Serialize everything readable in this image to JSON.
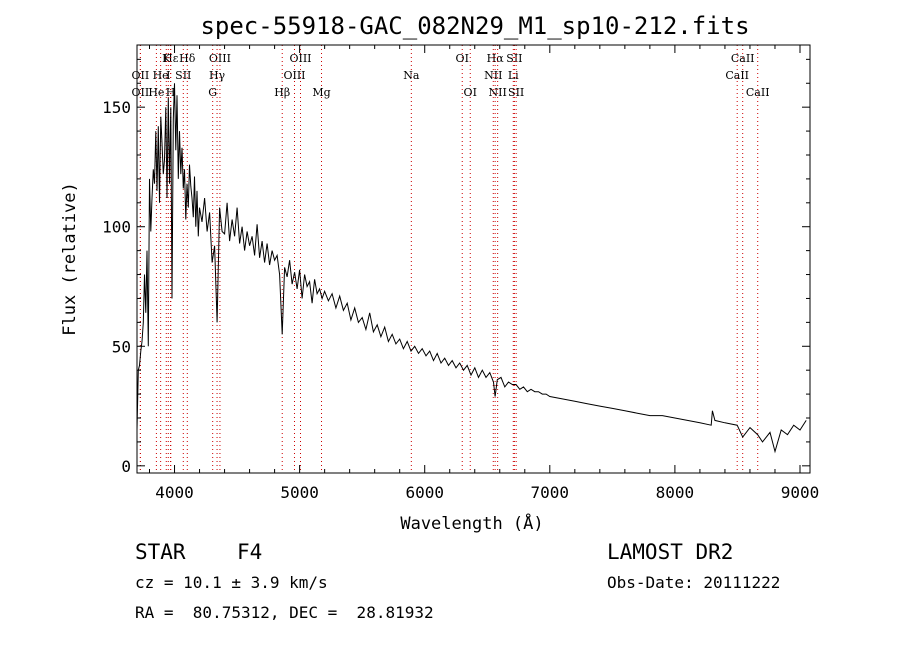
{
  "chart_data": {
    "type": "line",
    "title": "spec-55918-GAC_082N29_M1_sp10-212.fits",
    "xlabel": "Wavelength (Å)",
    "ylabel": "Flux (relative)",
    "xlim": [
      3700,
      9080
    ],
    "ylim": [
      -3,
      176
    ],
    "xticks": [
      4000,
      5000,
      6000,
      7000,
      8000,
      9000
    ],
    "yticks": [
      0,
      50,
      100,
      150
    ],
    "grid": false,
    "line_color": "#000000",
    "marker_color": "#cc0000",
    "series": [
      {
        "x": [
          3700,
          3710,
          3720,
          3730,
          3740,
          3750,
          3760,
          3770,
          3780,
          3790,
          3800,
          3810,
          3820,
          3830,
          3840,
          3850,
          3860,
          3870,
          3880,
          3890,
          3900,
          3910,
          3920,
          3930,
          3940,
          3950,
          3960,
          3970,
          3980,
          3990,
          4000,
          4010,
          4020,
          4030,
          4040,
          4050,
          4060,
          4070,
          4080,
          4090,
          4100,
          4110,
          4120,
          4130,
          4140,
          4150,
          4160,
          4170,
          4180,
          4190,
          4200,
          4220,
          4240,
          4260,
          4280,
          4300,
          4320,
          4340,
          4360,
          4380,
          4400,
          4420,
          4440,
          4460,
          4480,
          4500,
          4520,
          4540,
          4560,
          4580,
          4600,
          4620,
          4640,
          4660,
          4680,
          4700,
          4720,
          4740,
          4760,
          4780,
          4800,
          4820,
          4840,
          4861,
          4880,
          4900,
          4920,
          4940,
          4960,
          4980,
          5000,
          5020,
          5040,
          5060,
          5080,
          5100,
          5120,
          5140,
          5160,
          5180,
          5200,
          5230,
          5260,
          5290,
          5320,
          5350,
          5380,
          5410,
          5440,
          5470,
          5500,
          5530,
          5560,
          5590,
          5620,
          5650,
          5680,
          5710,
          5740,
          5770,
          5800,
          5830,
          5860,
          5890,
          5920,
          5950,
          5980,
          6010,
          6040,
          6070,
          6100,
          6130,
          6160,
          6190,
          6220,
          6250,
          6280,
          6310,
          6340,
          6370,
          6400,
          6430,
          6460,
          6490,
          6520,
          6550,
          6563,
          6580,
          6610,
          6640,
          6670,
          6700,
          6730,
          6760,
          6790,
          6820,
          6850,
          6880,
          6910,
          6940,
          6970,
          7000,
          7100,
          7200,
          7300,
          7400,
          7500,
          7600,
          7700,
          7800,
          7900,
          8000,
          8100,
          8200,
          8290,
          8300,
          8320,
          8400,
          8498,
          8542,
          8600,
          8662,
          8700,
          8760,
          8800,
          8850,
          8900,
          8950,
          9000,
          9050
        ],
        "y": [
          15,
          40,
          42,
          48,
          52,
          60,
          80,
          64,
          90,
          50,
          120,
          98,
          112,
          124,
          118,
          140,
          115,
          142,
          110,
          146,
          135,
          122,
          128,
          150,
          112,
          154,
          118,
          150,
          70,
          145,
          160,
          132,
          155,
          120,
          140,
          122,
          133,
          116,
          124,
          103,
          118,
          108,
          126,
          117,
          112,
          104,
          121,
          100,
          115,
          96,
          108,
          102,
          112,
          98,
          106,
          85,
          92,
          60,
          108,
          98,
          97,
          110,
          94,
          103,
          96,
          108,
          93,
          100,
          90,
          98,
          92,
          96,
          88,
          101,
          87,
          94,
          85,
          93,
          84,
          90,
          86,
          88,
          80,
          55,
          83,
          79,
          86,
          76,
          81,
          74,
          82,
          70,
          80,
          75,
          77,
          68,
          78,
          72,
          74,
          70,
          73,
          69,
          72,
          66,
          71,
          65,
          68,
          61,
          66,
          60,
          62,
          57,
          64,
          56,
          59,
          54,
          58,
          52,
          55,
          51,
          53,
          49,
          52,
          48,
          50,
          47,
          49,
          46,
          48,
          44,
          47,
          43,
          45,
          42,
          44,
          41,
          43,
          40,
          42,
          38,
          41,
          37,
          40,
          37,
          39,
          35,
          29,
          36,
          37,
          33,
          35,
          34,
          34,
          32,
          33,
          31,
          32,
          31,
          31,
          30,
          30,
          29,
          28,
          27,
          26,
          25,
          24,
          23,
          22,
          21,
          21,
          20,
          19,
          18,
          17,
          23,
          19,
          18,
          17,
          12,
          16,
          13,
          10,
          14,
          6,
          15,
          13,
          17,
          15,
          19
        ]
      }
    ],
    "lines": [
      {
        "text": "Hε",
        "wl": 3970,
        "row": 0
      },
      {
        "text": "K",
        "wl": 3934,
        "row": 0
      },
      {
        "text": "Hδ",
        "wl": 4102,
        "row": 0
      },
      {
        "text": "OIII",
        "wl": 4363,
        "row": 0
      },
      {
        "text": "OIII",
        "wl": 5007,
        "row": 0
      },
      {
        "text": "OI",
        "wl": 6300,
        "row": 0
      },
      {
        "text": "Hα",
        "wl": 6563,
        "row": 0
      },
      {
        "text": "SII",
        "wl": 6717,
        "row": 0
      },
      {
        "text": "CaII",
        "wl": 8542,
        "row": 0
      },
      {
        "text": "OII",
        "wl": 3727,
        "row": 1
      },
      {
        "text": "He",
        "wl": 3889,
        "row": 1
      },
      {
        "text": "I",
        "wl": 3950,
        "row": 1
      },
      {
        "text": "SII",
        "wl": 4070,
        "row": 1
      },
      {
        "text": "Hγ",
        "wl": 4340,
        "row": 1
      },
      {
        "text": "OIII",
        "wl": 4959,
        "row": 1
      },
      {
        "text": "Na",
        "wl": 5893,
        "row": 1
      },
      {
        "text": "NII",
        "wl": 6548,
        "row": 1
      },
      {
        "text": "Li",
        "wl": 6708,
        "row": 1
      },
      {
        "text": "CaII",
        "wl": 8498,
        "row": 1
      },
      {
        "text": "OII",
        "wl": 3727,
        "row": 2
      },
      {
        "text": "He",
        "wl": 3855,
        "row": 2
      },
      {
        "text": "H",
        "wl": 3968,
        "row": 2
      },
      {
        "text": "G",
        "wl": 4305,
        "row": 2
      },
      {
        "text": "Hβ",
        "wl": 4861,
        "row": 2
      },
      {
        "text": "Mg",
        "wl": 5175,
        "row": 2
      },
      {
        "text": "OI",
        "wl": 6364,
        "row": 2
      },
      {
        "text": "NII",
        "wl": 6583,
        "row": 2
      },
      {
        "text": "SII",
        "wl": 6731,
        "row": 2
      },
      {
        "text": "CaII",
        "wl": 8662,
        "row": 2
      }
    ]
  },
  "footer": {
    "object_type": "STAR",
    "subclass": "F4",
    "survey": "LAMOST DR2",
    "redshift": "cz = 10.1 ± 3.9 km/s",
    "obs_date": "Obs-Date: 20111222",
    "coords": "RA =  80.75312, DEC =  28.81932"
  }
}
